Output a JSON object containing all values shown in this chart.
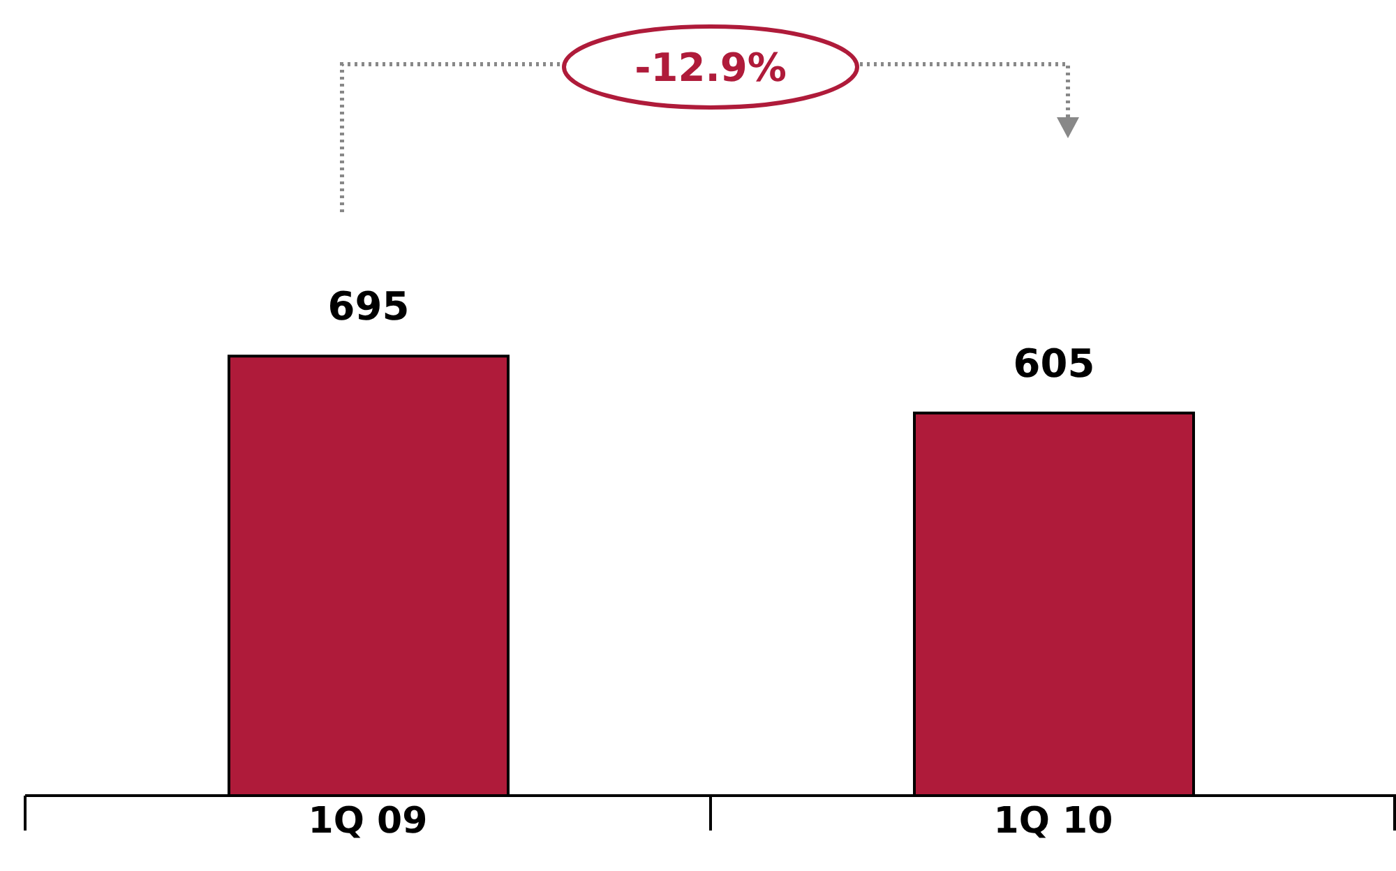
{
  "chart_data": {
    "type": "bar",
    "categories": [
      "1Q 09",
      "1Q 10"
    ],
    "values": [
      695,
      605
    ],
    "color": "#af1b3a",
    "data_labels": true,
    "annotations": [
      "-12.9%"
    ]
  }
}
